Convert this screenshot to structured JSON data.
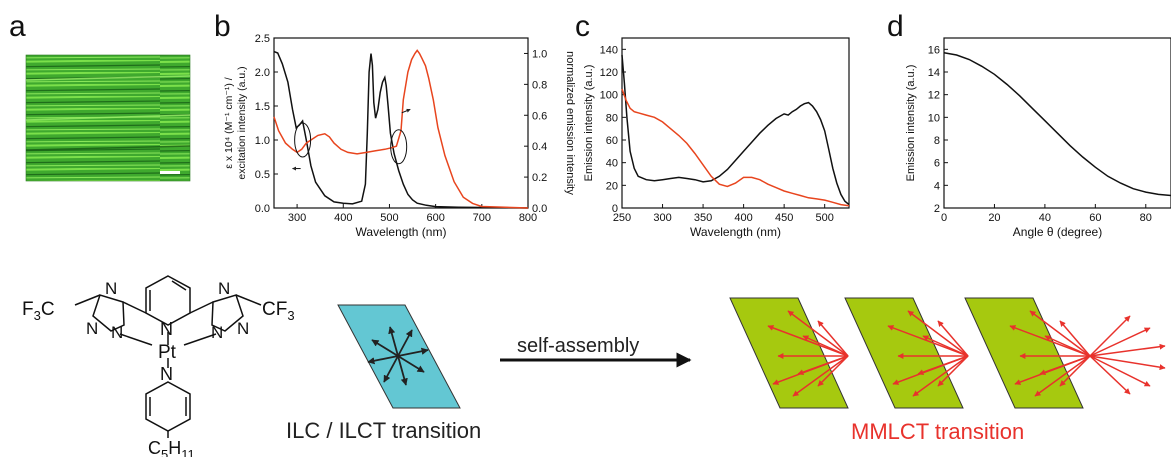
{
  "panel_labels": {
    "a": "a",
    "b": "b",
    "c": "c",
    "d": "d"
  },
  "chemical_structure": {
    "f3c": "F3C",
    "cf3": "CF3",
    "pt": "Pt",
    "c5h11": "C5H11",
    "n_atoms": [
      "N",
      "N",
      "N",
      "N",
      "N",
      "N",
      "N",
      "N"
    ]
  },
  "schematic": {
    "arrow_label": "self-assembly",
    "left_caption": "ILC / ILCT transition",
    "right_caption": "MMLCT transition",
    "colors": {
      "monomer_fill": "#63C7D3",
      "aggregate_fill": "#A6C90F",
      "aggregate_arrows": "#E8322C",
      "monomer_arrows": "#222222"
    }
  },
  "chart_data": [
    {
      "id": "b",
      "type": "line",
      "xlabel": "Wavelength (nm)",
      "ylabel_left": "ε x 10⁴ (M⁻¹ cm⁻¹) / excitation intensity (a.u.)",
      "ylabel_right": "normalized emission intensity",
      "xlim": [
        250,
        800
      ],
      "ylim_left": [
        0,
        2.5
      ],
      "ylim_right": [
        0,
        1.1
      ],
      "xticks": [
        300,
        400,
        500,
        600,
        700,
        800
      ],
      "yticks_left": [
        0.0,
        0.5,
        1.0,
        1.5,
        2.0,
        2.5
      ],
      "yticks_right": [
        0.0,
        0.2,
        0.4,
        0.6,
        0.8,
        1.0
      ],
      "series": [
        {
          "color": "#111111",
          "axis": "left",
          "x": [
            250,
            258,
            268,
            280,
            290,
            298,
            305,
            312,
            320,
            330,
            340,
            360,
            380,
            400,
            420,
            440,
            448,
            452,
            456,
            460,
            463,
            466,
            470,
            475,
            480,
            485,
            490,
            493,
            497,
            502,
            510,
            520,
            530,
            540,
            550,
            560,
            580,
            600,
            650,
            800
          ],
          "y": [
            2.3,
            2.28,
            2.12,
            1.85,
            1.45,
            1.18,
            1.22,
            1.28,
            1.0,
            0.62,
            0.38,
            0.18,
            0.09,
            0.07,
            0.06,
            0.1,
            0.35,
            1.1,
            2.0,
            2.27,
            2.1,
            1.55,
            1.32,
            1.45,
            1.7,
            1.85,
            1.92,
            1.8,
            1.5,
            1.1,
            0.8,
            0.55,
            0.35,
            0.2,
            0.12,
            0.07,
            0.04,
            0.02,
            0.01,
            0.0
          ]
        },
        {
          "color": "#E8451E",
          "axis": "right",
          "x": [
            250,
            260,
            275,
            290,
            300,
            310,
            320,
            330,
            345,
            360,
            370,
            380,
            395,
            410,
            430,
            450,
            470,
            490,
            505,
            515,
            525,
            530,
            540,
            548,
            555,
            560,
            565,
            570,
            578,
            585,
            595,
            605,
            620,
            640,
            660,
            680,
            700,
            800
          ],
          "y": [
            0.59,
            0.5,
            0.42,
            0.38,
            0.36,
            0.38,
            0.42,
            0.44,
            0.47,
            0.48,
            0.46,
            0.42,
            0.38,
            0.36,
            0.35,
            0.36,
            0.37,
            0.38,
            0.39,
            0.4,
            0.5,
            0.7,
            0.88,
            0.96,
            1.0,
            1.02,
            1.0,
            0.97,
            0.92,
            0.84,
            0.7,
            0.52,
            0.34,
            0.17,
            0.07,
            0.03,
            0.01,
            0.0
          ]
        }
      ]
    },
    {
      "id": "c",
      "type": "line",
      "xlabel": "Wavelength (nm)",
      "ylabel": "Emission intensity (a.u.)",
      "xlim": [
        250,
        530
      ],
      "ylim": [
        0,
        150
      ],
      "xticks": [
        250,
        300,
        350,
        400,
        450,
        500
      ],
      "yticks": [
        0,
        20,
        40,
        60,
        80,
        100,
        120,
        140
      ],
      "series": [
        {
          "color": "#111111",
          "x": [
            250,
            253,
            256,
            260,
            265,
            270,
            280,
            290,
            300,
            310,
            320,
            330,
            340,
            350,
            360,
            370,
            380,
            390,
            400,
            410,
            420,
            430,
            440,
            450,
            455,
            460,
            465,
            470,
            475,
            480,
            485,
            490,
            495,
            500,
            505,
            510,
            515,
            520,
            525,
            530
          ],
          "y": [
            135,
            110,
            80,
            50,
            35,
            28,
            25,
            24,
            25,
            26,
            27,
            26,
            25,
            23,
            24,
            28,
            34,
            42,
            50,
            58,
            66,
            73,
            79,
            83,
            82,
            85,
            87,
            90,
            92,
            93,
            90,
            85,
            78,
            68,
            52,
            35,
            22,
            12,
            6,
            3
          ]
        },
        {
          "color": "#E8451E",
          "x": [
            250,
            255,
            260,
            265,
            270,
            280,
            290,
            300,
            310,
            320,
            330,
            340,
            350,
            360,
            370,
            380,
            390,
            400,
            410,
            420,
            430,
            440,
            450,
            460,
            470,
            480,
            490,
            500,
            510,
            520,
            530
          ],
          "y": [
            105,
            95,
            88,
            85,
            84,
            82,
            80,
            76,
            70,
            64,
            57,
            48,
            38,
            28,
            21,
            19,
            22,
            27,
            27,
            25,
            21,
            18,
            15,
            13,
            11,
            9,
            8,
            7,
            5,
            3,
            2
          ]
        }
      ]
    },
    {
      "id": "d",
      "type": "line",
      "xlabel": "Angle θ (degree)",
      "ylabel": "Emission intensity (a.u.)",
      "xlim": [
        0,
        90
      ],
      "ylim": [
        2,
        17
      ],
      "xticks": [
        0,
        20,
        40,
        60,
        80
      ],
      "yticks": [
        2,
        4,
        6,
        8,
        10,
        12,
        14,
        16
      ],
      "series": [
        {
          "color": "#111111",
          "x": [
            0,
            5,
            10,
            15,
            20,
            25,
            30,
            35,
            40,
            45,
            50,
            55,
            60,
            65,
            70,
            75,
            80,
            85,
            90
          ],
          "y": [
            15.7,
            15.5,
            15.1,
            14.5,
            13.8,
            12.9,
            11.9,
            10.8,
            9.7,
            8.6,
            7.5,
            6.5,
            5.6,
            4.8,
            4.2,
            3.7,
            3.4,
            3.2,
            3.1
          ]
        }
      ]
    }
  ]
}
